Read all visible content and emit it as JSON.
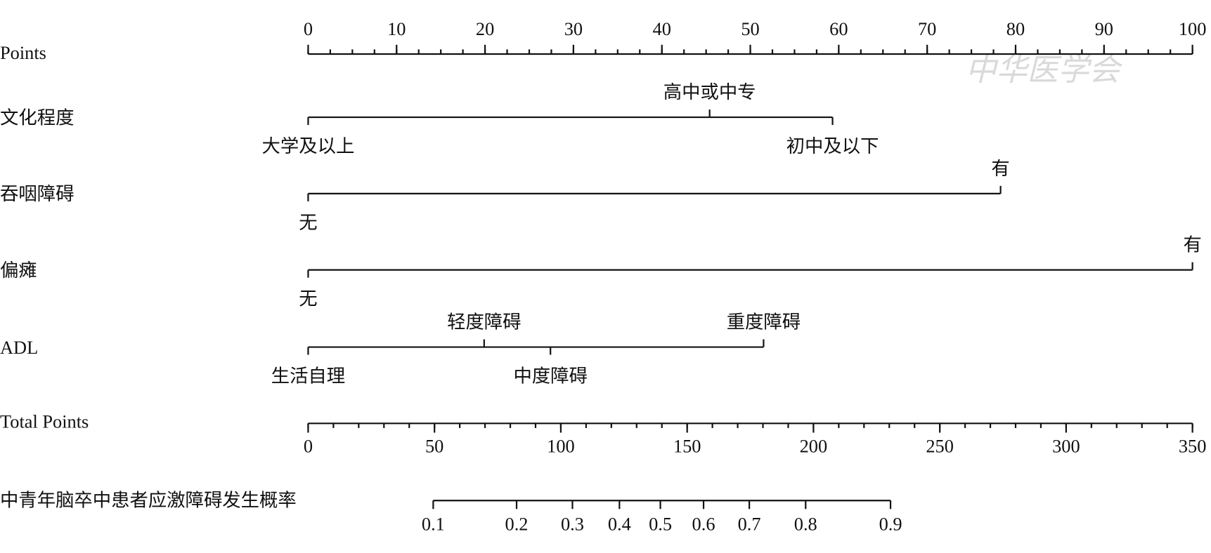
{
  "chart_data": {
    "type": "nomogram",
    "watermark": "中华医学会",
    "points": {
      "label": "Points",
      "lim": [
        0,
        100
      ],
      "ticks": [
        0,
        10,
        20,
        30,
        40,
        50,
        60,
        70,
        80,
        90,
        100
      ],
      "minor_ticks": [
        0,
        2.5,
        5,
        7.5,
        10,
        12.5,
        15,
        17.5,
        20,
        22.5,
        25,
        27.5,
        30,
        32.5,
        35,
        37.5,
        40,
        42.5,
        45,
        47.5,
        50,
        52.5,
        55,
        57.5,
        60,
        62.5,
        65,
        67.5,
        70,
        72.5,
        75,
        77.5,
        80,
        82.5,
        85,
        87.5,
        90,
        92.5,
        95,
        97.5,
        100
      ]
    },
    "variables": [
      {
        "name": "文化程度",
        "levels": [
          {
            "label": "大学及以上",
            "points": 0
          },
          {
            "label": "高中或中专",
            "points": 45.4
          },
          {
            "label": "初中及以下",
            "points": 59.3
          }
        ]
      },
      {
        "name": "吞咽障碍",
        "levels": [
          {
            "label": "无",
            "points": 0
          },
          {
            "label": "有",
            "points": 78.3
          }
        ]
      },
      {
        "name": "偏瘫",
        "levels": [
          {
            "label": "无",
            "points": 0
          },
          {
            "label": "有",
            "points": 100
          }
        ]
      },
      {
        "name": "ADL",
        "levels": [
          {
            "label": "生活自理",
            "points": 0
          },
          {
            "label": "轻度障碍",
            "points": 19.9
          },
          {
            "label": "中度障碍",
            "points": 27.4
          },
          {
            "label": "重度障碍",
            "points": 51.5
          }
        ]
      }
    ],
    "total_points": {
      "label": "Total Points",
      "lim": [
        0,
        350
      ],
      "ticks": [
        0,
        50,
        100,
        150,
        200,
        250,
        300,
        350
      ],
      "minor_ticks": [
        0,
        10,
        20,
        30,
        40,
        50,
        60,
        70,
        80,
        90,
        100,
        110,
        120,
        130,
        140,
        150,
        160,
        170,
        180,
        190,
        200,
        210,
        220,
        230,
        240,
        250,
        260,
        270,
        280,
        290,
        300,
        310,
        320,
        330,
        340,
        350
      ]
    },
    "probability": {
      "label": "中青年脑卒中患者应激障碍发生概率",
      "ticks": [
        0.1,
        0.2,
        0.3,
        0.4,
        0.5,
        0.6,
        0.7,
        0.8,
        0.9
      ],
      "total_points": [
        49.5,
        82.5,
        104.6,
        123.2,
        139.4,
        156.5,
        174.6,
        196.9,
        230.5
      ]
    }
  }
}
